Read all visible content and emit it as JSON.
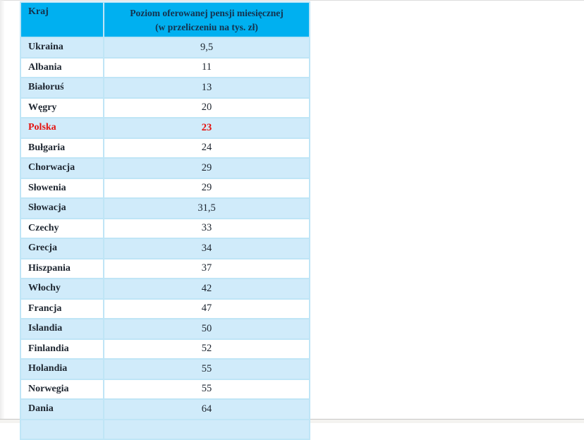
{
  "table": {
    "header": {
      "country_label": "Kraj",
      "salary_label_line1": "Poziom oferowanej pensji miesięcznej",
      "salary_label_line2": "(w przeliczeniu na tys. zł)"
    },
    "rows": [
      {
        "country": "Ukraina",
        "value": "9,5",
        "highlight": false
      },
      {
        "country": "Albania",
        "value": "11",
        "highlight": false
      },
      {
        "country": "Białoruś",
        "value": "13",
        "highlight": false
      },
      {
        "country": "Węgry",
        "value": "20",
        "highlight": false
      },
      {
        "country": "Polska",
        "value": "23",
        "highlight": true
      },
      {
        "country": "Bułgaria",
        "value": "24",
        "highlight": false
      },
      {
        "country": "Chorwacja",
        "value": "29",
        "highlight": false
      },
      {
        "country": "Słowenia",
        "value": "29",
        "highlight": false
      },
      {
        "country": "Słowacja",
        "value": "31,5",
        "highlight": false
      },
      {
        "country": "Czechy",
        "value": "33",
        "highlight": false
      },
      {
        "country": "Grecja",
        "value": "34",
        "highlight": false
      },
      {
        "country": "Hiszpania",
        "value": "37",
        "highlight": false
      },
      {
        "country": "Włochy",
        "value": "42",
        "highlight": false
      },
      {
        "country": "Francja",
        "value": "47",
        "highlight": false
      },
      {
        "country": "Islandia",
        "value": "50",
        "highlight": false
      },
      {
        "country": "Finlandia",
        "value": "52",
        "highlight": false
      },
      {
        "country": "Holandia",
        "value": "55",
        "highlight": false
      },
      {
        "country": "Norwegia",
        "value": "55",
        "highlight": false
      },
      {
        "country": "Dania",
        "value": "64",
        "highlight": false
      }
    ]
  },
  "colors": {
    "header_bg": "#00b0f0",
    "header_text": "#14324e",
    "row_alt_bg": "#d0ebfa",
    "row_bg": "#ffffff",
    "border": "#bfe5f6",
    "text": "#1e2630",
    "highlight": "#e5120f"
  }
}
